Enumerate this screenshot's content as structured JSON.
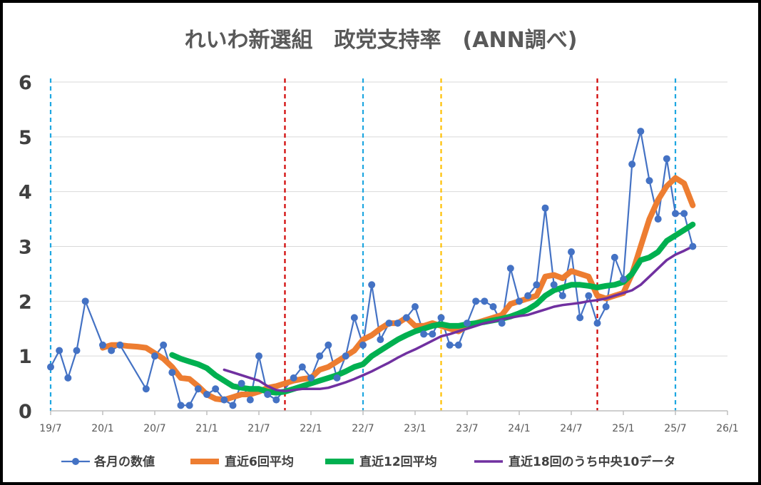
{
  "chart_data": {
    "type": "line",
    "title": "れいわ新選組　政党支持率　(ANN調べ)",
    "x_start": "2019-07",
    "x_end": "2026-01",
    "xticks": [
      "19/7",
      "20/1",
      "20/7",
      "21/1",
      "21/7",
      "22/1",
      "22/7",
      "23/1",
      "23/7",
      "24/1",
      "24/7",
      "25/1",
      "25/7",
      "26/1"
    ],
    "ylim": [
      0,
      6
    ],
    "yticks": [
      "0",
      "1",
      "2",
      "3",
      "4",
      "5",
      "6"
    ],
    "grid": true,
    "legend_position": "bottom",
    "vlines": [
      {
        "x": "2019-07",
        "color": "#1ea7e1"
      },
      {
        "x": "2021-10",
        "color": "#d00000"
      },
      {
        "x": "2022-07",
        "color": "#1ea7e1"
      },
      {
        "x": "2023-04",
        "color": "#ffc000"
      },
      {
        "x": "2024-10",
        "color": "#d00000"
      },
      {
        "x": "2025-07",
        "color": "#1ea7e1"
      }
    ],
    "series": [
      {
        "name": "各月の数値",
        "color": "#4472c4",
        "style": "line-marker",
        "points": [
          [
            "2019-07",
            0.8
          ],
          [
            "2019-08",
            1.1
          ],
          [
            "2019-09",
            0.6
          ],
          [
            "2019-10",
            1.1
          ],
          [
            "2019-11",
            2.0
          ],
          [
            "2020-01",
            1.2
          ],
          [
            "2020-02",
            1.1
          ],
          [
            "2020-03",
            1.2
          ],
          [
            "2020-06",
            0.4
          ],
          [
            "2020-07",
            1.0
          ],
          [
            "2020-08",
            1.2
          ],
          [
            "2020-09",
            0.7
          ],
          [
            "2020-10",
            0.1
          ],
          [
            "2020-11",
            0.1
          ],
          [
            "2020-12",
            0.4
          ],
          [
            "2021-01",
            0.3
          ],
          [
            "2021-02",
            0.4
          ],
          [
            "2021-03",
            0.2
          ],
          [
            "2021-04",
            0.1
          ],
          [
            "2021-05",
            0.5
          ],
          [
            "2021-06",
            0.2
          ],
          [
            "2021-07",
            1.0
          ],
          [
            "2021-08",
            0.3
          ],
          [
            "2021-09",
            0.2
          ],
          [
            "2021-11",
            0.6
          ],
          [
            "2021-12",
            0.8
          ],
          [
            "2022-01",
            0.6
          ],
          [
            "2022-02",
            1.0
          ],
          [
            "2022-03",
            1.2
          ],
          [
            "2022-04",
            0.6
          ],
          [
            "2022-05",
            1.0
          ],
          [
            "2022-06",
            1.7
          ],
          [
            "2022-07",
            1.2
          ],
          [
            "2022-08",
            2.3
          ],
          [
            "2022-09",
            1.3
          ],
          [
            "2022-10",
            1.6
          ],
          [
            "2022-11",
            1.6
          ],
          [
            "2022-12",
            1.7
          ],
          [
            "2023-01",
            1.9
          ],
          [
            "2023-02",
            1.4
          ],
          [
            "2023-03",
            1.4
          ],
          [
            "2023-04",
            1.7
          ],
          [
            "2023-05",
            1.2
          ],
          [
            "2023-06",
            1.2
          ],
          [
            "2023-07",
            1.6
          ],
          [
            "2023-08",
            2.0
          ],
          [
            "2023-09",
            2.0
          ],
          [
            "2023-10",
            1.9
          ],
          [
            "2023-11",
            1.6
          ],
          [
            "2023-12",
            2.6
          ],
          [
            "2024-01",
            2.0
          ],
          [
            "2024-02",
            2.1
          ],
          [
            "2024-03",
            2.3
          ],
          [
            "2024-04",
            3.7
          ],
          [
            "2024-05",
            2.3
          ],
          [
            "2024-06",
            2.1
          ],
          [
            "2024-07",
            2.9
          ],
          [
            "2024-08",
            1.7
          ],
          [
            "2024-09",
            2.1
          ],
          [
            "2024-10",
            1.6
          ],
          [
            "2024-11",
            1.9
          ],
          [
            "2024-12",
            2.8
          ],
          [
            "2025-01",
            2.4
          ],
          [
            "2025-02",
            4.5
          ],
          [
            "2025-03",
            5.1
          ],
          [
            "2025-04",
            4.2
          ],
          [
            "2025-05",
            3.5
          ],
          [
            "2025-06",
            4.6
          ],
          [
            "2025-07",
            3.6
          ],
          [
            "2025-08",
            3.6
          ],
          [
            "2025-09",
            3.0
          ]
        ]
      },
      {
        "name": "直近6回平均",
        "color": "#ed7d31",
        "style": "thick-line",
        "points": [
          [
            "2020-01",
            1.15
          ],
          [
            "2020-02",
            1.2
          ],
          [
            "2020-03",
            1.2
          ],
          [
            "2020-04",
            1.18
          ],
          [
            "2020-05",
            1.17
          ],
          [
            "2020-06",
            1.15
          ],
          [
            "2020-07",
            1.05
          ],
          [
            "2020-08",
            0.95
          ],
          [
            "2020-09",
            0.8
          ],
          [
            "2020-10",
            0.6
          ],
          [
            "2020-11",
            0.58
          ],
          [
            "2020-12",
            0.45
          ],
          [
            "2021-01",
            0.3
          ],
          [
            "2021-02",
            0.22
          ],
          [
            "2021-03",
            0.2
          ],
          [
            "2021-04",
            0.25
          ],
          [
            "2021-05",
            0.3
          ],
          [
            "2021-06",
            0.3
          ],
          [
            "2021-07",
            0.35
          ],
          [
            "2021-08",
            0.42
          ],
          [
            "2021-09",
            0.45
          ],
          [
            "2021-10",
            0.5
          ],
          [
            "2021-11",
            0.55
          ],
          [
            "2021-12",
            0.58
          ],
          [
            "2022-01",
            0.6
          ],
          [
            "2022-02",
            0.75
          ],
          [
            "2022-03",
            0.8
          ],
          [
            "2022-04",
            0.9
          ],
          [
            "2022-05",
            1.0
          ],
          [
            "2022-06",
            1.1
          ],
          [
            "2022-07",
            1.3
          ],
          [
            "2022-08",
            1.38
          ],
          [
            "2022-09",
            1.5
          ],
          [
            "2022-10",
            1.6
          ],
          [
            "2022-11",
            1.6
          ],
          [
            "2022-12",
            1.7
          ],
          [
            "2023-01",
            1.55
          ],
          [
            "2023-02",
            1.55
          ],
          [
            "2023-03",
            1.6
          ],
          [
            "2023-04",
            1.55
          ],
          [
            "2023-05",
            1.5
          ],
          [
            "2023-06",
            1.45
          ],
          [
            "2023-07",
            1.55
          ],
          [
            "2023-08",
            1.6
          ],
          [
            "2023-09",
            1.65
          ],
          [
            "2023-10",
            1.7
          ],
          [
            "2023-11",
            1.75
          ],
          [
            "2023-12",
            1.95
          ],
          [
            "2024-01",
            2.0
          ],
          [
            "2024-02",
            2.05
          ],
          [
            "2024-03",
            2.1
          ],
          [
            "2024-04",
            2.45
          ],
          [
            "2024-05",
            2.48
          ],
          [
            "2024-06",
            2.42
          ],
          [
            "2024-07",
            2.55
          ],
          [
            "2024-08",
            2.5
          ],
          [
            "2024-09",
            2.45
          ],
          [
            "2024-10",
            2.1
          ],
          [
            "2024-11",
            2.05
          ],
          [
            "2024-12",
            2.1
          ],
          [
            "2025-01",
            2.15
          ],
          [
            "2025-02",
            2.5
          ],
          [
            "2025-03",
            3.0
          ],
          [
            "2025-04",
            3.5
          ],
          [
            "2025-05",
            3.85
          ],
          [
            "2025-06",
            4.1
          ],
          [
            "2025-07",
            4.25
          ],
          [
            "2025-08",
            4.15
          ],
          [
            "2025-09",
            3.75
          ]
        ]
      },
      {
        "name": "直近12回平均",
        "color": "#00b050",
        "style": "thick-line",
        "points": [
          [
            "2020-09",
            1.02
          ],
          [
            "2020-10",
            0.95
          ],
          [
            "2020-11",
            0.9
          ],
          [
            "2020-12",
            0.85
          ],
          [
            "2021-01",
            0.78
          ],
          [
            "2021-02",
            0.65
          ],
          [
            "2021-03",
            0.55
          ],
          [
            "2021-04",
            0.45
          ],
          [
            "2021-05",
            0.42
          ],
          [
            "2021-06",
            0.4
          ],
          [
            "2021-07",
            0.4
          ],
          [
            "2021-08",
            0.35
          ],
          [
            "2021-09",
            0.33
          ],
          [
            "2021-10",
            0.35
          ],
          [
            "2021-11",
            0.4
          ],
          [
            "2021-12",
            0.45
          ],
          [
            "2022-01",
            0.5
          ],
          [
            "2022-02",
            0.55
          ],
          [
            "2022-03",
            0.6
          ],
          [
            "2022-04",
            0.65
          ],
          [
            "2022-05",
            0.72
          ],
          [
            "2022-06",
            0.8
          ],
          [
            "2022-07",
            0.85
          ],
          [
            "2022-08",
            1.0
          ],
          [
            "2022-09",
            1.1
          ],
          [
            "2022-10",
            1.2
          ],
          [
            "2022-11",
            1.3
          ],
          [
            "2022-12",
            1.38
          ],
          [
            "2023-01",
            1.45
          ],
          [
            "2023-02",
            1.5
          ],
          [
            "2023-03",
            1.55
          ],
          [
            "2023-04",
            1.58
          ],
          [
            "2023-05",
            1.55
          ],
          [
            "2023-06",
            1.55
          ],
          [
            "2023-07",
            1.58
          ],
          [
            "2023-08",
            1.6
          ],
          [
            "2023-09",
            1.62
          ],
          [
            "2023-10",
            1.65
          ],
          [
            "2023-11",
            1.68
          ],
          [
            "2023-12",
            1.72
          ],
          [
            "2024-01",
            1.78
          ],
          [
            "2024-02",
            1.85
          ],
          [
            "2024-03",
            1.95
          ],
          [
            "2024-04",
            2.1
          ],
          [
            "2024-05",
            2.2
          ],
          [
            "2024-06",
            2.25
          ],
          [
            "2024-07",
            2.3
          ],
          [
            "2024-08",
            2.3
          ],
          [
            "2024-09",
            2.28
          ],
          [
            "2024-10",
            2.25
          ],
          [
            "2024-11",
            2.28
          ],
          [
            "2024-12",
            2.3
          ],
          [
            "2025-01",
            2.35
          ],
          [
            "2025-02",
            2.5
          ],
          [
            "2025-03",
            2.75
          ],
          [
            "2025-04",
            2.8
          ],
          [
            "2025-05",
            2.9
          ],
          [
            "2025-06",
            3.1
          ],
          [
            "2025-07",
            3.2
          ],
          [
            "2025-08",
            3.3
          ],
          [
            "2025-09",
            3.4
          ]
        ]
      },
      {
        "name": "直近18回のうち中央10データ",
        "color": "#7030a0",
        "style": "line",
        "points": [
          [
            "2021-03",
            0.75
          ],
          [
            "2021-04",
            0.7
          ],
          [
            "2021-05",
            0.65
          ],
          [
            "2021-06",
            0.6
          ],
          [
            "2021-07",
            0.55
          ],
          [
            "2021-08",
            0.45
          ],
          [
            "2021-09",
            0.38
          ],
          [
            "2021-10",
            0.36
          ],
          [
            "2021-11",
            0.38
          ],
          [
            "2021-12",
            0.4
          ],
          [
            "2022-01",
            0.4
          ],
          [
            "2022-02",
            0.4
          ],
          [
            "2022-03",
            0.42
          ],
          [
            "2022-04",
            0.47
          ],
          [
            "2022-05",
            0.52
          ],
          [
            "2022-06",
            0.58
          ],
          [
            "2022-07",
            0.65
          ],
          [
            "2022-08",
            0.72
          ],
          [
            "2022-09",
            0.8
          ],
          [
            "2022-10",
            0.88
          ],
          [
            "2022-11",
            0.97
          ],
          [
            "2022-12",
            1.05
          ],
          [
            "2023-01",
            1.12
          ],
          [
            "2023-02",
            1.2
          ],
          [
            "2023-03",
            1.28
          ],
          [
            "2023-04",
            1.36
          ],
          [
            "2023-05",
            1.4
          ],
          [
            "2023-06",
            1.45
          ],
          [
            "2023-07",
            1.5
          ],
          [
            "2023-08",
            1.55
          ],
          [
            "2023-09",
            1.6
          ],
          [
            "2023-10",
            1.63
          ],
          [
            "2023-11",
            1.67
          ],
          [
            "2023-12",
            1.7
          ],
          [
            "2024-01",
            1.73
          ],
          [
            "2024-02",
            1.75
          ],
          [
            "2024-03",
            1.8
          ],
          [
            "2024-04",
            1.85
          ],
          [
            "2024-05",
            1.9
          ],
          [
            "2024-06",
            1.93
          ],
          [
            "2024-07",
            1.95
          ],
          [
            "2024-08",
            1.97
          ],
          [
            "2024-09",
            2.0
          ],
          [
            "2024-10",
            2.02
          ],
          [
            "2024-11",
            2.05
          ],
          [
            "2024-12",
            2.1
          ],
          [
            "2025-01",
            2.15
          ],
          [
            "2025-02",
            2.2
          ],
          [
            "2025-03",
            2.3
          ],
          [
            "2025-04",
            2.45
          ],
          [
            "2025-05",
            2.6
          ],
          [
            "2025-06",
            2.75
          ],
          [
            "2025-07",
            2.85
          ],
          [
            "2025-08",
            2.92
          ],
          [
            "2025-09",
            3.0
          ]
        ]
      }
    ]
  }
}
